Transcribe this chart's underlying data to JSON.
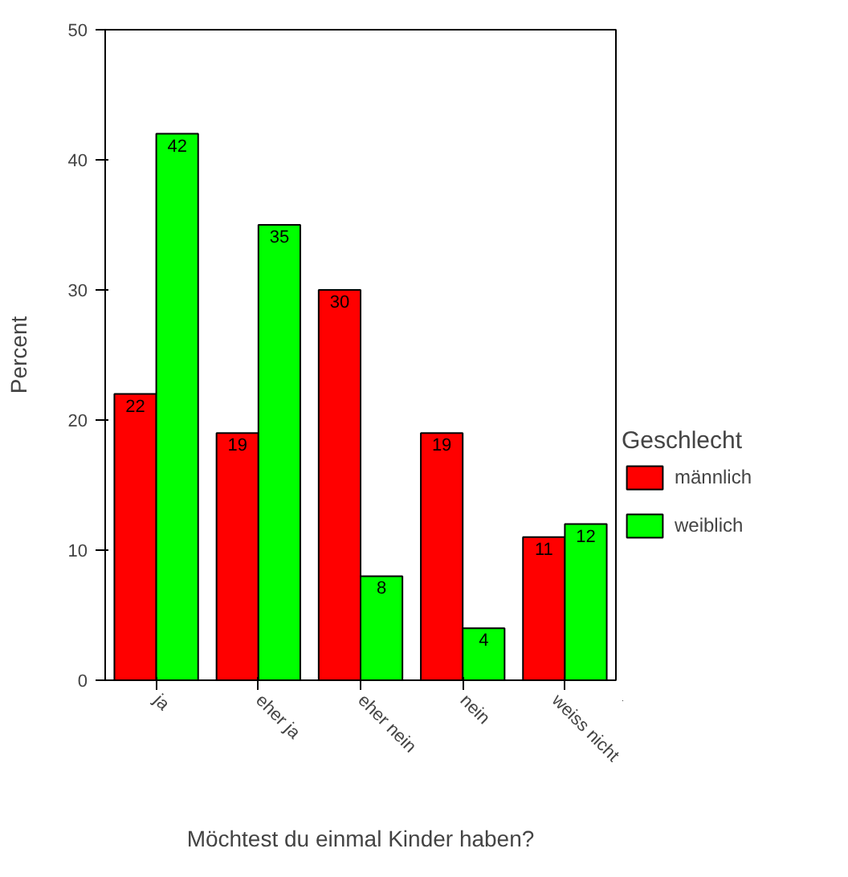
{
  "chart_data": {
    "type": "bar",
    "xlabel": "Möchtest du einmal Kinder haben?",
    "ylabel": "Percent",
    "legend_title": "Geschlecht",
    "categories": [
      "ja",
      "eher ja",
      "eher nein",
      "nein",
      "weiss nicht"
    ],
    "series": [
      {
        "name": "männlich",
        "color": "#ff0000",
        "values": [
          22,
          19,
          30,
          19,
          11
        ]
      },
      {
        "name": "weiblich",
        "color": "#00ff00",
        "values": [
          42,
          35,
          8,
          4,
          12
        ]
      }
    ],
    "ylim": [
      0,
      50
    ],
    "yticks": [
      0,
      10,
      20,
      30,
      40,
      50
    ],
    "data_labels": true,
    "legend": "right",
    "grid": false
  }
}
